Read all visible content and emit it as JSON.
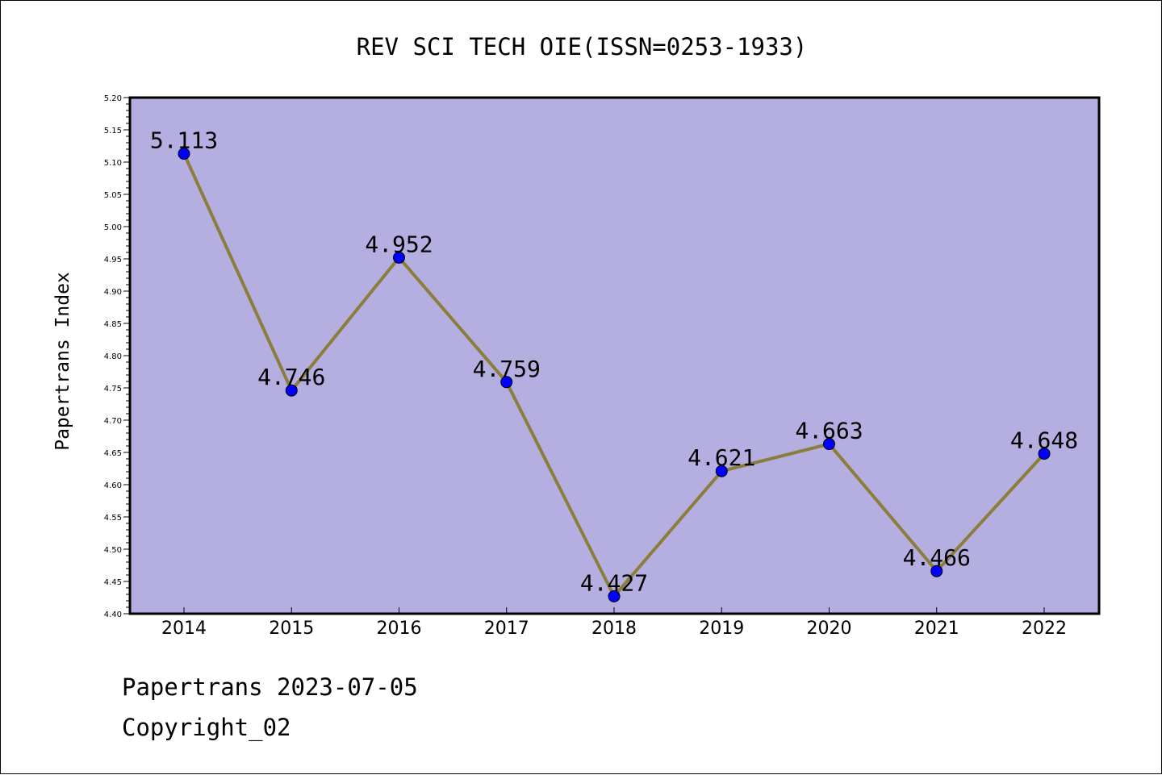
{
  "chart_data": {
    "type": "line",
    "title": "REV SCI TECH OIE(ISSN=0253-1933)",
    "xlabel": "",
    "ylabel": "Papertrans Index",
    "categories": [
      "2014",
      "2015",
      "2016",
      "2017",
      "2018",
      "2019",
      "2020",
      "2021",
      "2022"
    ],
    "series": [
      {
        "values": [
          5.113,
          4.746,
          4.952,
          4.759,
          4.427,
          4.621,
          4.663,
          4.466,
          4.648
        ],
        "labels": [
          "5.113",
          "4.746",
          "4.952",
          "4.759",
          "4.427",
          "4.621",
          "4.663",
          "4.466",
          "4.648"
        ]
      }
    ],
    "ylim": [
      4.4,
      5.2
    ],
    "yticks": [
      "4.40",
      "4.45",
      "4.50",
      "4.55",
      "4.60",
      "4.65",
      "4.70",
      "4.75",
      "4.80",
      "4.85",
      "4.90",
      "4.95",
      "5.00",
      "5.05",
      "5.10",
      "5.15",
      "5.20"
    ],
    "grid": false,
    "colors": {
      "plot_background": "#b5aee1",
      "line": "#8b7d3a",
      "marker": "#0000ff"
    }
  },
  "footer": {
    "line1": "Papertrans 2023-07-05",
    "line2": "Copyright_02"
  }
}
